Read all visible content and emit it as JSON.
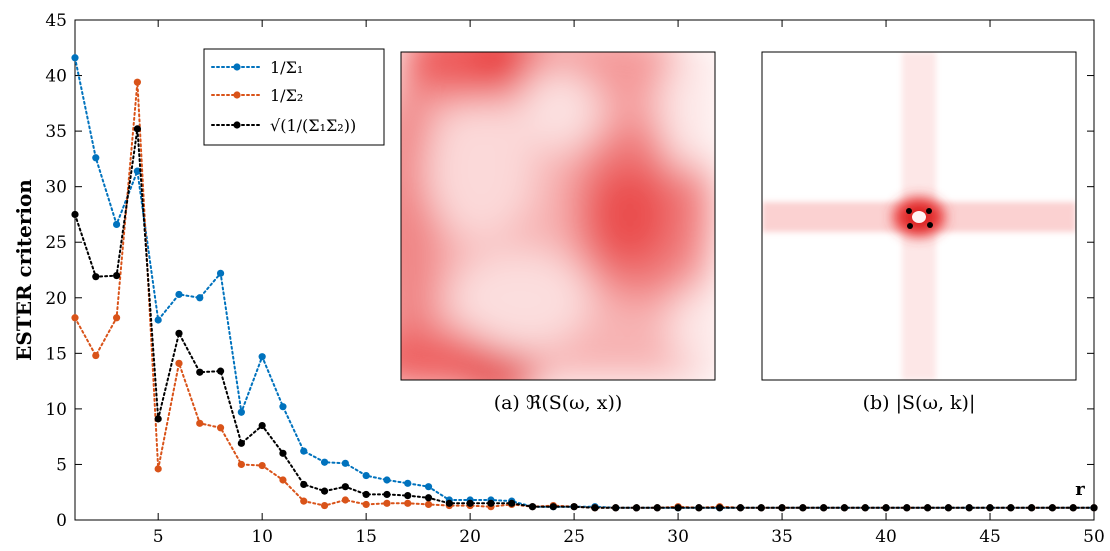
{
  "chart_data": {
    "type": "line",
    "title": "",
    "xlabel": "r",
    "ylabel": "ESTER criterion",
    "xlim": [
      1,
      50
    ],
    "ylim": [
      0,
      45
    ],
    "xticks": [
      5,
      10,
      15,
      20,
      25,
      30,
      35,
      40,
      45,
      50
    ],
    "yticks": [
      0,
      5,
      10,
      15,
      20,
      25,
      30,
      35,
      40,
      45
    ],
    "grid": false,
    "legend_position": "top-left",
    "x": [
      1,
      2,
      3,
      4,
      5,
      6,
      7,
      8,
      9,
      10,
      11,
      12,
      13,
      14,
      15,
      16,
      17,
      18,
      19,
      20,
      21,
      22,
      23,
      24,
      25,
      26,
      27,
      28,
      29,
      30,
      31,
      32,
      33,
      34,
      35,
      36,
      37,
      38,
      39,
      40,
      41,
      42,
      43,
      44,
      45,
      46,
      47,
      48,
      49,
      50
    ],
    "series": [
      {
        "name": "1/Σ₁",
        "color": "#0072bd",
        "values": [
          41.6,
          32.6,
          26.6,
          31.4,
          18.0,
          20.3,
          20.0,
          22.2,
          9.7,
          14.7,
          10.2,
          6.2,
          5.2,
          5.1,
          4.0,
          3.6,
          3.3,
          3.0,
          1.8,
          1.8,
          1.8,
          1.7,
          1.2,
          1.2,
          1.2,
          1.2,
          1.1,
          1.1,
          1.1,
          1.1,
          1.1,
          1.1,
          1.1,
          1.1,
          1.1,
          1.1,
          1.1,
          1.1,
          1.1,
          1.1,
          1.1,
          1.1,
          1.1,
          1.1,
          1.1,
          1.1,
          1.1,
          1.1,
          1.1,
          1.1
        ]
      },
      {
        "name": "1/Σ₂",
        "color": "#d95319",
        "values": [
          18.2,
          14.8,
          18.2,
          39.4,
          4.6,
          14.1,
          8.7,
          8.3,
          5.0,
          4.9,
          3.6,
          1.7,
          1.3,
          1.8,
          1.4,
          1.5,
          1.5,
          1.4,
          1.3,
          1.3,
          1.2,
          1.4,
          1.2,
          1.3,
          1.2,
          1.1,
          1.1,
          1.1,
          1.1,
          1.2,
          1.1,
          1.2,
          1.1,
          1.1,
          1.1,
          1.1,
          1.1,
          1.1,
          1.1,
          1.1,
          1.1,
          1.1,
          1.1,
          1.1,
          1.1,
          1.1,
          1.1,
          1.1,
          1.1,
          1.1
        ]
      },
      {
        "name": "√(1/(Σ₁Σ₂))",
        "color": "#000000",
        "values": [
          27.5,
          21.9,
          22.0,
          35.2,
          9.1,
          16.8,
          13.3,
          13.4,
          6.9,
          8.5,
          6.0,
          3.2,
          2.6,
          3.0,
          2.3,
          2.3,
          2.2,
          2.0,
          1.5,
          1.5,
          1.5,
          1.5,
          1.2,
          1.2,
          1.2,
          1.1,
          1.1,
          1.1,
          1.1,
          1.1,
          1.1,
          1.1,
          1.1,
          1.1,
          1.1,
          1.1,
          1.1,
          1.1,
          1.1,
          1.1,
          1.1,
          1.1,
          1.1,
          1.1,
          1.1,
          1.1,
          1.1,
          1.1,
          1.1,
          1.1
        ]
      }
    ],
    "insets": [
      {
        "caption": "(a) ℜ(S(ω, x))"
      },
      {
        "caption": "(b) |S(ω, k)|"
      }
    ]
  }
}
